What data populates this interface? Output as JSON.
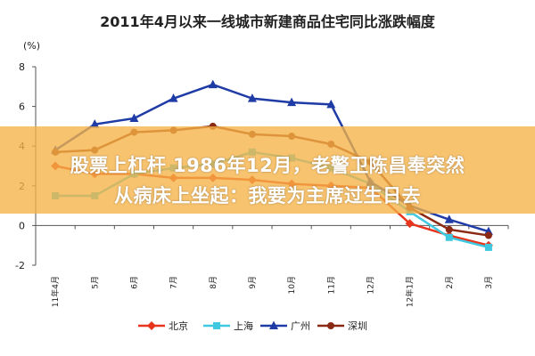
{
  "chart_data": {
    "type": "line",
    "title": "2011年4月以来一线城市新建商品住宅同比涨跌幅度",
    "ylabel": "(%)",
    "xlabel": "",
    "ylim": [
      -2,
      8
    ],
    "yticks": [
      "-2",
      "0",
      "2",
      "4",
      "6",
      "8"
    ],
    "grid": false,
    "legend": "bottom",
    "categories": [
      "11年4月",
      "5月",
      "6月",
      "7月",
      "8月",
      "9月",
      "10月",
      "11月",
      "12月",
      "12年1月",
      "2月",
      "3月"
    ],
    "series": [
      {
        "name": "北京",
        "color": "#e8341c",
        "marker": "diamond",
        "values": [
          3.0,
          2.6,
          2.6,
          2.4,
          2.4,
          2.3,
          2.1,
          2.0,
          1.9,
          0.1,
          -0.5,
          -1.0
        ]
      },
      {
        "name": "上海",
        "color": "#3fc9e0",
        "marker": "square",
        "values": [
          1.5,
          1.5,
          2.6,
          2.9,
          3.1,
          3.7,
          3.4,
          2.9,
          2.1,
          0.7,
          -0.6,
          -1.1
        ]
      },
      {
        "name": "广州",
        "color": "#1f3ba6",
        "marker": "triangle",
        "values": [
          3.8,
          5.1,
          5.4,
          6.4,
          7.1,
          6.4,
          6.2,
          6.1,
          2.2,
          1.0,
          0.3,
          -0.3
        ]
      },
      {
        "name": "深圳",
        "color": "#8b2a14",
        "marker": "circle",
        "values": [
          3.7,
          3.8,
          4.7,
          4.8,
          5.0,
          4.6,
          4.5,
          4.1,
          3.2,
          0.9,
          -0.2,
          -0.5
        ]
      }
    ]
  },
  "overlay": {
    "line1": "股票上杠杆 1986年12月，老警卫陈昌奉突然",
    "line2": "从病床上坐起：我要为主席过生日去"
  }
}
